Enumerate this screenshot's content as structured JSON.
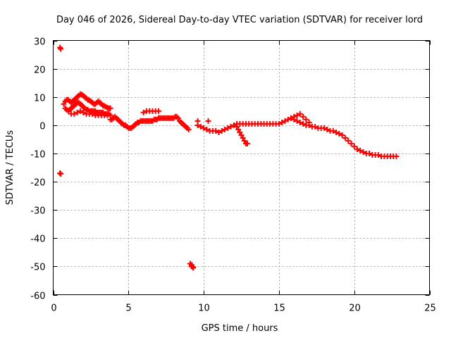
{
  "chart_data": {
    "type": "scatter",
    "title": "Day 046 of 2026, Sidereal Day-to-day VTEC variation (SDTVAR) for receiver lord",
    "xlabel": "GPS time / hours",
    "ylabel": "SDTVAR / TECUs",
    "xlim": [
      0,
      25
    ],
    "ylim": [
      -60,
      30
    ],
    "xticks": [
      0,
      5,
      10,
      15,
      20,
      25
    ],
    "yticks": [
      30,
      20,
      10,
      0,
      -10,
      -20,
      -30,
      -40,
      -50,
      -60
    ],
    "grid": true,
    "marker": "+",
    "series": [
      {
        "name": "SDTVAR",
        "color": "#ff0000",
        "x": [
          0.45,
          0.5,
          0.45,
          0.5,
          0.7,
          0.8,
          0.9,
          1.0,
          1.1,
          1.2,
          1.3,
          1.4,
          1.5,
          1.6,
          1.7,
          1.8,
          1.9,
          2.0,
          2.1,
          2.2,
          2.3,
          2.4,
          2.5,
          2.6,
          2.7,
          2.8,
          2.9,
          3.0,
          3.1,
          3.2,
          3.3,
          3.4,
          3.5,
          3.6,
          3.7,
          3.8,
          0.8,
          0.9,
          1.0,
          1.1,
          1.2,
          1.3,
          1.4,
          1.5,
          1.6,
          1.7,
          1.8,
          1.9,
          2.0,
          2.1,
          2.2,
          2.3,
          2.4,
          2.5,
          2.6,
          2.7,
          2.8,
          2.9,
          3.0,
          3.1,
          3.2,
          3.3,
          3.4,
          3.5,
          3.6,
          3.7,
          1.2,
          1.4,
          1.6,
          1.8,
          2.0,
          2.2,
          2.4,
          2.6,
          2.8,
          3.0,
          3.2,
          3.4,
          3.6,
          3.8,
          3.8,
          3.9,
          4.0,
          4.1,
          4.2,
          4.3,
          4.4,
          4.5,
          4.6,
          4.7,
          4.8,
          4.9,
          5.0,
          5.1,
          5.2,
          5.3,
          5.4,
          5.5,
          5.6,
          5.7,
          5.8,
          5.9,
          6.0,
          6.1,
          6.2,
          6.3,
          6.4,
          6.5,
          6.6,
          6.7,
          6.8,
          6.9,
          7.0,
          7.1,
          7.2,
          7.3,
          7.4,
          7.5,
          7.6,
          7.7,
          7.8,
          7.9,
          8.0,
          8.1,
          8.2,
          8.3,
          8.4,
          8.5,
          8.6,
          8.7,
          8.8,
          8.9,
          9.0,
          6.0,
          6.2,
          6.4,
          6.6,
          6.8,
          7.0,
          9.1,
          9.2,
          9.3,
          9.2,
          9.3,
          9.6,
          9.8,
          10.0,
          10.2,
          10.4,
          10.6,
          10.8,
          11.0,
          11.2,
          11.4,
          11.6,
          11.8,
          12.0,
          12.2,
          12.4,
          12.6,
          12.8,
          13.0,
          13.2,
          13.4,
          13.6,
          13.8,
          14.0,
          14.2,
          14.4,
          14.6,
          14.8,
          15.0,
          12.2,
          12.3,
          12.4,
          12.5,
          12.6,
          12.7,
          12.8,
          12.9,
          9.6,
          10.3,
          15.2,
          15.4,
          15.6,
          15.8,
          16.0,
          16.2,
          16.4,
          16.6,
          16.8,
          17.0,
          17.2,
          17.4,
          17.6,
          17.8,
          18.0,
          18.2,
          18.4,
          18.6,
          18.8,
          19.0,
          15.8,
          16.0,
          16.2,
          16.4,
          16.6,
          16.8,
          17.0,
          19.2,
          19.4,
          19.6,
          19.8,
          20.0,
          20.2,
          20.4,
          20.6,
          20.8,
          21.0,
          21.2,
          21.4,
          21.6,
          21.8,
          22.0,
          22.2,
          22.4,
          22.6,
          22.8
        ],
        "y": [
          27.5,
          27.0,
          -17.0,
          -17.2,
          7.5,
          8.5,
          9.0,
          9.0,
          8.5,
          8.0,
          8.5,
          9.0,
          9.5,
          10.0,
          10.5,
          11.0,
          10.8,
          10.5,
          10.0,
          9.5,
          9.0,
          8.8,
          8.5,
          8.0,
          7.5,
          7.5,
          8.0,
          8.5,
          8.0,
          7.5,
          7.0,
          6.8,
          6.5,
          6.2,
          6.0,
          6.0,
          6.0,
          5.5,
          5.0,
          5.5,
          6.0,
          6.5,
          7.0,
          7.5,
          8.0,
          8.0,
          7.5,
          7.0,
          6.5,
          6.0,
          5.5,
          5.5,
          5.0,
          5.0,
          5.0,
          5.0,
          5.0,
          4.5,
          4.5,
          4.5,
          4.5,
          4.5,
          4.0,
          4.0,
          4.0,
          4.0,
          4.0,
          4.0,
          4.5,
          5.0,
          4.5,
          4.0,
          4.0,
          4.0,
          3.5,
          3.5,
          3.5,
          3.5,
          3.5,
          3.5,
          2.0,
          2.0,
          2.5,
          3.0,
          2.5,
          2.0,
          1.5,
          1.0,
          0.5,
          0.0,
          0.0,
          -0.5,
          -1.0,
          -1.0,
          -1.0,
          -0.5,
          0.0,
          0.5,
          1.0,
          1.0,
          1.5,
          1.5,
          1.5,
          1.5,
          1.5,
          1.5,
          1.5,
          1.5,
          1.5,
          2.0,
          2.0,
          2.0,
          2.5,
          2.5,
          2.5,
          2.5,
          2.5,
          2.5,
          2.5,
          2.5,
          2.5,
          2.5,
          2.5,
          3.0,
          3.0,
          2.5,
          1.5,
          1.0,
          0.5,
          0.0,
          -0.5,
          -1.0,
          -1.5,
          4.5,
          5.0,
          5.0,
          5.0,
          5.0,
          5.0,
          -49.0,
          -50.0,
          -50.5,
          -49.5,
          -50.2,
          0.0,
          -0.5,
          -1.0,
          -1.5,
          -2.0,
          -2.0,
          -2.0,
          -2.5,
          -2.0,
          -1.5,
          -1.0,
          -0.5,
          0.0,
          0.5,
          0.5,
          0.5,
          0.5,
          0.5,
          0.5,
          0.5,
          0.5,
          0.5,
          0.5,
          0.5,
          0.5,
          0.5,
          0.5,
          0.5,
          -0.5,
          -1.5,
          -2.5,
          -3.5,
          -4.5,
          -5.5,
          -6.5,
          -6.5,
          1.5,
          1.5,
          1.0,
          1.5,
          2.0,
          2.5,
          2.0,
          1.5,
          1.0,
          0.5,
          0.0,
          0.0,
          -0.5,
          -0.5,
          -1.0,
          -1.0,
          -1.0,
          -1.5,
          -2.0,
          -2.0,
          -2.5,
          -3.0,
          2.5,
          3.0,
          3.5,
          4.0,
          3.0,
          2.0,
          1.0,
          -3.5,
          -4.5,
          -5.5,
          -6.5,
          -7.5,
          -8.5,
          -9.0,
          -9.5,
          -10.0,
          -10.0,
          -10.5,
          -10.5,
          -10.5,
          -11.0,
          -11.0,
          -11.0,
          -11.0,
          -11.0,
          -11.0
        ]
      }
    ]
  }
}
